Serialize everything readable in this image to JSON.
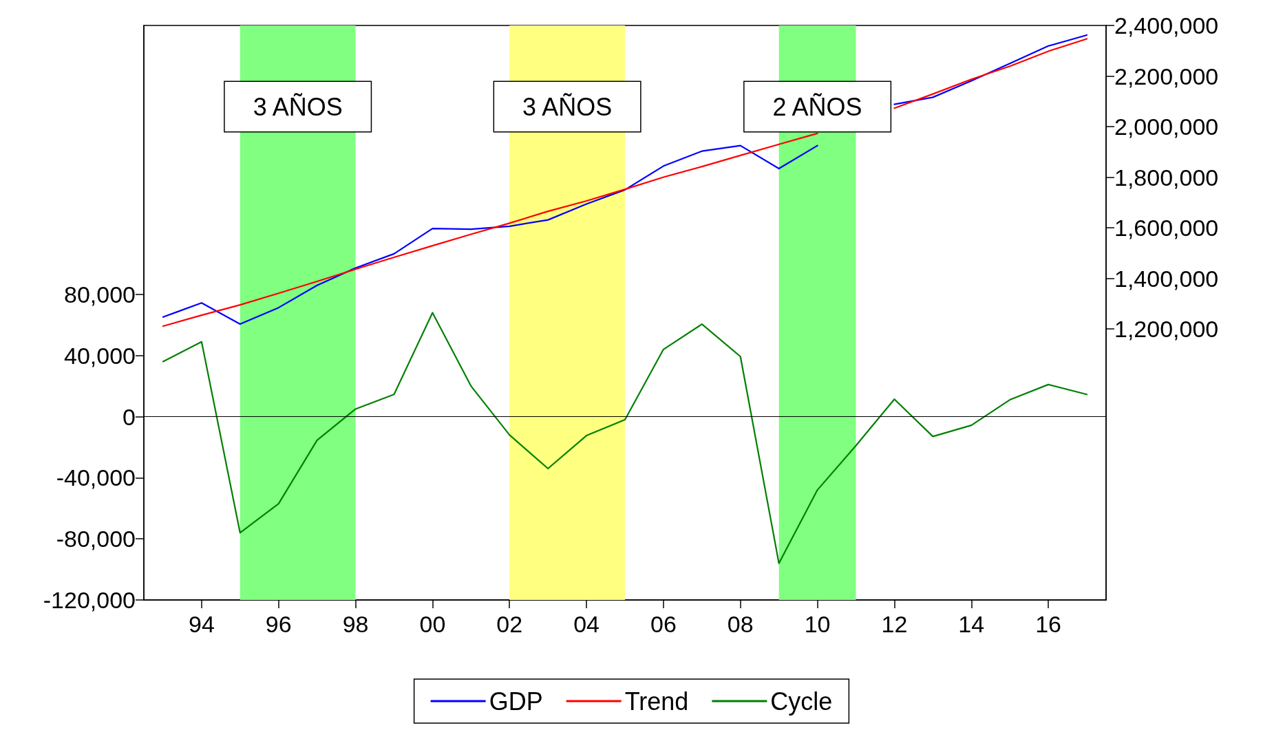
{
  "chart_data": {
    "type": "line",
    "x": [
      1993,
      1994,
      1995,
      1996,
      1997,
      1998,
      1999,
      2000,
      2001,
      2002,
      2003,
      2004,
      2005,
      2006,
      2007,
      2008,
      2009,
      2010,
      2011,
      2012,
      2013,
      2014,
      2015,
      2016,
      2017
    ],
    "series": [
      {
        "name": "GDP",
        "color": "#0000ff",
        "axis": "y2",
        "values": [
          1247000,
          1303000,
          1219000,
          1284000,
          1372000,
          1441000,
          1497000,
          1597000,
          1594000,
          1606000,
          1631000,
          1694000,
          1750000,
          1844000,
          1903000,
          1925000,
          1834000,
          1925000,
          null,
          2088000,
          2116000,
          2181000,
          2250000,
          2319000,
          2362000
        ]
      },
      {
        "name": "Trend",
        "color": "#ff0000",
        "axis": "y2",
        "values": [
          1211000,
          1254000,
          1295000,
          1341000,
          1388000,
          1436000,
          1483000,
          1529000,
          1574000,
          1618000,
          1665000,
          1706000,
          1752000,
          1800000,
          1842000,
          1886000,
          1930000,
          1973000,
          null,
          2073000,
          2129000,
          2187000,
          2239000,
          2298000,
          2347000
        ]
      },
      {
        "name": "Cycle",
        "color": "#008000",
        "values": [
          36000,
          49000,
          -76000,
          -57000,
          -15500,
          5000,
          14500,
          68000,
          20000,
          -12000,
          -34000,
          -12400,
          -2000,
          44000,
          60500,
          39300,
          -96000,
          -48000,
          -19000,
          11400,
          -13000,
          -5700,
          11000,
          21000,
          14500
        ]
      }
    ],
    "xlim": [
      1992.5,
      2017.5
    ],
    "xticks": [
      {
        "value": 1994,
        "label": "94"
      },
      {
        "value": 1996,
        "label": "96"
      },
      {
        "value": 1998,
        "label": "98"
      },
      {
        "value": 2000,
        "label": "00"
      },
      {
        "value": 2002,
        "label": "02"
      },
      {
        "value": 2004,
        "label": "04"
      },
      {
        "value": 2006,
        "label": "06"
      },
      {
        "value": 2008,
        "label": "08"
      },
      {
        "value": 2010,
        "label": "10"
      },
      {
        "value": 2012,
        "label": "12"
      },
      {
        "value": 2014,
        "label": "14"
      },
      {
        "value": 2016,
        "label": "16"
      }
    ],
    "ylim": [
      -120000,
      256000
    ],
    "yticks": [
      {
        "value": -120000,
        "label": "-120,000"
      },
      {
        "value": -80000,
        "label": "-80,000"
      },
      {
        "value": -40000,
        "label": "-40,000"
      },
      {
        "value": 0,
        "label": "0"
      },
      {
        "value": 40000,
        "label": "40,000"
      },
      {
        "value": 80000,
        "label": "80,000"
      }
    ],
    "y2lim": [
      128000,
      2400000
    ],
    "y2ticks": [
      {
        "value": 1200000,
        "label": "1,200,000"
      },
      {
        "value": 1400000,
        "label": "1,400,000"
      },
      {
        "value": 1600000,
        "label": "1,600,000"
      },
      {
        "value": 1800000,
        "label": "1,800,000"
      },
      {
        "value": 2000000,
        "label": "2,000,000"
      },
      {
        "value": 2200000,
        "label": "2,200,000"
      },
      {
        "value": 2400000,
        "label": "2,400,000"
      }
    ],
    "bands": [
      {
        "axis": "x",
        "from": 1995,
        "to": 1998,
        "label": "3 AÑOS",
        "color": "#80ff80"
      },
      {
        "axis": "x",
        "from": 2002,
        "to": 2005,
        "label": "3 AÑOS",
        "color": "#ffff80"
      },
      {
        "axis": "x",
        "from": 2009,
        "to": 2011,
        "label": "2 AÑOS",
        "color": "#80ff80"
      }
    ],
    "ref_lines": [
      {
        "axis": "y",
        "value": 0,
        "color": "#000000"
      }
    ],
    "legend": "bottom",
    "grid": false,
    "marker": "none",
    "line_style": "solid"
  }
}
